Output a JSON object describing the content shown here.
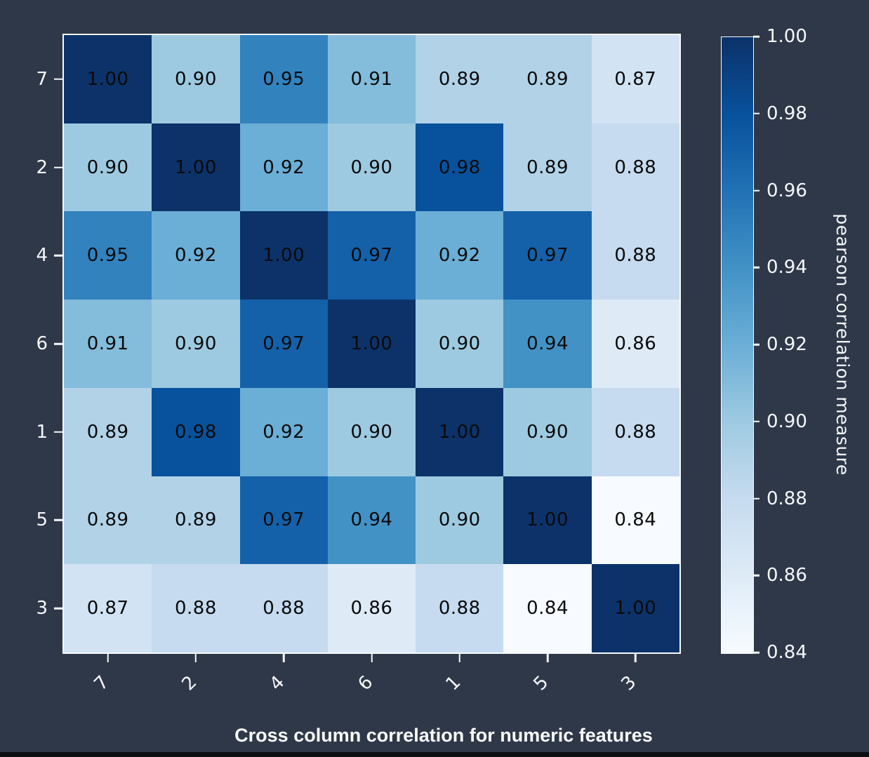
{
  "figure": {
    "background_color": "#2f3848",
    "bottom_bar_color": "#0b0e13",
    "spine_color": "#f7f9fc",
    "tick_text_color": "#f5f7fa",
    "cell_text_color": "#0a0a0a"
  },
  "chart_data": {
    "type": "heatmap",
    "title": "Cross column correlation for numeric features",
    "categories": [
      "7",
      "2",
      "4",
      "6",
      "1",
      "5",
      "3"
    ],
    "matrix": [
      [
        1.0,
        0.9,
        0.95,
        0.91,
        0.89,
        0.89,
        0.87
      ],
      [
        0.9,
        1.0,
        0.92,
        0.9,
        0.98,
        0.89,
        0.88
      ],
      [
        0.95,
        0.92,
        1.0,
        0.97,
        0.92,
        0.97,
        0.88
      ],
      [
        0.91,
        0.9,
        0.97,
        1.0,
        0.9,
        0.94,
        0.86
      ],
      [
        0.89,
        0.98,
        0.92,
        0.9,
        1.0,
        0.9,
        0.88
      ],
      [
        0.89,
        0.89,
        0.97,
        0.94,
        0.9,
        1.0,
        0.84
      ],
      [
        0.87,
        0.88,
        0.88,
        0.86,
        0.88,
        0.84,
        1.0
      ]
    ],
    "annotation_format": "0.00",
    "x_tick_rotation_deg": 45,
    "grid": false,
    "colorbar": {
      "label": "pearson correlation measure",
      "vmin": 0.84,
      "vmax": 1.0,
      "tick_labels": [
        "1.00",
        "0.98",
        "0.96",
        "0.94",
        "0.92",
        "0.90",
        "0.88",
        "0.86",
        "0.84"
      ],
      "position": "right"
    },
    "colormap": {
      "name": "Blues",
      "stops": [
        [
          0.0,
          "#f7fbff"
        ],
        [
          0.125,
          "#deebf7"
        ],
        [
          0.25,
          "#c6dbef"
        ],
        [
          0.375,
          "#9ecae1"
        ],
        [
          0.5,
          "#6baed6"
        ],
        [
          0.625,
          "#4292c6"
        ],
        [
          0.75,
          "#2171b5"
        ],
        [
          0.875,
          "#08519c"
        ],
        [
          1.0,
          "#0c3269"
        ]
      ]
    }
  }
}
